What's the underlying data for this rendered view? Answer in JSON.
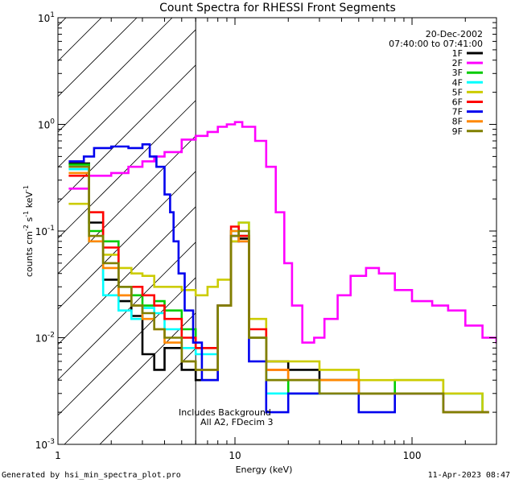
{
  "chart_data": {
    "type": "line",
    "title": "Count Spectra for RHESSI Front Segments",
    "xlabel": "Energy (keV)",
    "ylabel_main": "counts cm",
    "ylabel_exp1": "-2",
    "ylabel_mid": " s",
    "ylabel_exp2": "-1",
    "ylabel_end": " keV",
    "ylabel_exp3": "-1",
    "xscale": "log",
    "yscale": "log",
    "xlim": [
      1,
      300
    ],
    "ylim": [
      0.001,
      10
    ],
    "x_ticks": [
      {
        "value": 1,
        "label": "1"
      },
      {
        "value": 10,
        "label": "10"
      },
      {
        "value": 100,
        "label": "100"
      }
    ],
    "y_ticks": [
      {
        "value": 0.001,
        "base": "10",
        "exp": "-3"
      },
      {
        "value": 0.01,
        "base": "10",
        "exp": "-2"
      },
      {
        "value": 0.1,
        "base": "10",
        "exp": "-1"
      },
      {
        "value": 1,
        "base": "10",
        "exp": "0"
      },
      {
        "value": 10,
        "base": "10",
        "exp": "1"
      }
    ],
    "date": "20-Dec-2002",
    "time_range": "07:40:00 to 07:41:00",
    "shaded_region_kev": [
      1,
      6
    ],
    "annotation_line1": "Includes Background",
    "annotation_line2": "All A2, FDecim 3",
    "series": [
      {
        "name": "1F",
        "color": "#000000",
        "points": [
          [
            1.15,
            0.43
          ],
          [
            1.5,
            0.12
          ],
          [
            1.8,
            0.035
          ],
          [
            2.2,
            0.022
          ],
          [
            2.6,
            0.016
          ],
          [
            3.0,
            0.007
          ],
          [
            3.5,
            0.005
          ],
          [
            4.0,
            0.008
          ],
          [
            5.0,
            0.005
          ],
          [
            6.0,
            0.004
          ],
          [
            8.0,
            0.02
          ],
          [
            9.5,
            0.08
          ],
          [
            10.5,
            0.085
          ],
          [
            12,
            0.01
          ],
          [
            15,
            0.006
          ],
          [
            20,
            0.005
          ],
          [
            30,
            0.004
          ],
          [
            50,
            0.003
          ],
          [
            80,
            0.003
          ],
          [
            150,
            0.002
          ],
          [
            250,
            0.002
          ]
        ]
      },
      {
        "name": "2F",
        "color": "#ff00ff",
        "points": [
          [
            1.15,
            0.25
          ],
          [
            1.5,
            0.33
          ],
          [
            2.0,
            0.35
          ],
          [
            2.5,
            0.4
          ],
          [
            3.0,
            0.45
          ],
          [
            3.5,
            0.5
          ],
          [
            4.0,
            0.55
          ],
          [
            5.0,
            0.72
          ],
          [
            6.0,
            0.78
          ],
          [
            7.0,
            0.85
          ],
          [
            8.0,
            0.95
          ],
          [
            9.0,
            1.0
          ],
          [
            10,
            1.05
          ],
          [
            11,
            0.95
          ],
          [
            13,
            0.7
          ],
          [
            15,
            0.4
          ],
          [
            17,
            0.15
          ],
          [
            19,
            0.05
          ],
          [
            21,
            0.02
          ],
          [
            24,
            0.009
          ],
          [
            28,
            0.01
          ],
          [
            32,
            0.015
          ],
          [
            38,
            0.025
          ],
          [
            45,
            0.038
          ],
          [
            55,
            0.045
          ],
          [
            65,
            0.04
          ],
          [
            80,
            0.028
          ],
          [
            100,
            0.022
          ],
          [
            130,
            0.02
          ],
          [
            160,
            0.018
          ],
          [
            200,
            0.013
          ],
          [
            250,
            0.01
          ],
          [
            300,
            0.009
          ]
        ]
      },
      {
        "name": "3F",
        "color": "#00cc00",
        "points": [
          [
            1.15,
            0.42
          ],
          [
            1.5,
            0.1
          ],
          [
            1.8,
            0.08
          ],
          [
            2.2,
            0.03
          ],
          [
            2.6,
            0.025
          ],
          [
            3.0,
            0.02
          ],
          [
            3.5,
            0.022
          ],
          [
            4.0,
            0.018
          ],
          [
            5.0,
            0.012
          ],
          [
            6.0,
            0.008
          ],
          [
            8.0,
            0.02
          ],
          [
            9.5,
            0.1
          ],
          [
            10.5,
            0.09
          ],
          [
            12,
            0.01
          ],
          [
            15,
            0.004
          ],
          [
            20,
            0.003
          ],
          [
            30,
            0.004
          ],
          [
            50,
            0.003
          ],
          [
            80,
            0.004
          ],
          [
            150,
            0.003
          ],
          [
            250,
            0.002
          ]
        ]
      },
      {
        "name": "4F",
        "color": "#00ffff",
        "points": [
          [
            1.15,
            0.38
          ],
          [
            1.5,
            0.08
          ],
          [
            1.8,
            0.025
          ],
          [
            2.2,
            0.018
          ],
          [
            2.6,
            0.015
          ],
          [
            3.0,
            0.019
          ],
          [
            3.5,
            0.017
          ],
          [
            4.0,
            0.012
          ],
          [
            5.0,
            0.008
          ],
          [
            6.0,
            0.007
          ],
          [
            8.0,
            0.02
          ],
          [
            9.5,
            0.1
          ],
          [
            10.5,
            0.12
          ],
          [
            12,
            0.01
          ],
          [
            15,
            0.003
          ],
          [
            20,
            0.003
          ],
          [
            30,
            0.003
          ],
          [
            50,
            0.003
          ],
          [
            80,
            0.003
          ],
          [
            150,
            0.003
          ],
          [
            250,
            0.002
          ]
        ]
      },
      {
        "name": "5F",
        "color": "#cccc00",
        "points": [
          [
            1.15,
            0.18
          ],
          [
            1.5,
            0.15
          ],
          [
            1.8,
            0.06
          ],
          [
            2.2,
            0.045
          ],
          [
            2.6,
            0.04
          ],
          [
            3.0,
            0.038
          ],
          [
            3.5,
            0.03
          ],
          [
            4.0,
            0.03
          ],
          [
            5.0,
            0.028
          ],
          [
            6.0,
            0.025
          ],
          [
            7.0,
            0.03
          ],
          [
            8.0,
            0.035
          ],
          [
            9.5,
            0.08
          ],
          [
            10.5,
            0.12
          ],
          [
            12,
            0.015
          ],
          [
            15,
            0.006
          ],
          [
            20,
            0.006
          ],
          [
            30,
            0.005
          ],
          [
            50,
            0.004
          ],
          [
            80,
            0.004
          ],
          [
            150,
            0.003
          ],
          [
            250,
            0.002
          ]
        ]
      },
      {
        "name": "6F",
        "color": "#ff0000",
        "points": [
          [
            1.15,
            0.33
          ],
          [
            1.5,
            0.15
          ],
          [
            1.8,
            0.07
          ],
          [
            2.2,
            0.025
          ],
          [
            2.6,
            0.03
          ],
          [
            3.0,
            0.025
          ],
          [
            3.5,
            0.02
          ],
          [
            4.0,
            0.015
          ],
          [
            5.0,
            0.01
          ],
          [
            6.0,
            0.008
          ],
          [
            8.0,
            0.02
          ],
          [
            9.5,
            0.11
          ],
          [
            10.5,
            0.09
          ],
          [
            12,
            0.012
          ],
          [
            15,
            0.005
          ],
          [
            20,
            0.004
          ],
          [
            30,
            0.004
          ],
          [
            50,
            0.003
          ],
          [
            80,
            0.003
          ],
          [
            150,
            0.002
          ],
          [
            250,
            0.002
          ]
        ]
      },
      {
        "name": "7F",
        "color": "#0000ee",
        "points": [
          [
            1.15,
            0.45
          ],
          [
            1.4,
            0.5
          ],
          [
            1.6,
            0.6
          ],
          [
            2.0,
            0.62
          ],
          [
            2.5,
            0.6
          ],
          [
            3.0,
            0.65
          ],
          [
            3.3,
            0.5
          ],
          [
            3.6,
            0.4
          ],
          [
            4.0,
            0.22
          ],
          [
            4.3,
            0.15
          ],
          [
            4.5,
            0.08
          ],
          [
            4.8,
            0.04
          ],
          [
            5.2,
            0.018
          ],
          [
            5.8,
            0.009
          ],
          [
            6.5,
            0.004
          ],
          [
            8.0,
            0.02
          ],
          [
            9.5,
            0.09
          ],
          [
            10.5,
            0.08
          ],
          [
            12,
            0.006
          ],
          [
            15,
            0.002
          ],
          [
            20,
            0.003
          ],
          [
            30,
            0.003
          ],
          [
            50,
            0.002
          ],
          [
            80,
            0.003
          ],
          [
            150,
            0.002
          ],
          [
            250,
            0.002
          ]
        ]
      },
      {
        "name": "8F",
        "color": "#ff8800",
        "points": [
          [
            1.15,
            0.35
          ],
          [
            1.5,
            0.08
          ],
          [
            1.8,
            0.045
          ],
          [
            2.2,
            0.025
          ],
          [
            2.6,
            0.02
          ],
          [
            3.0,
            0.015
          ],
          [
            3.5,
            0.012
          ],
          [
            4.0,
            0.009
          ],
          [
            5.0,
            0.006
          ],
          [
            6.0,
            0.005
          ],
          [
            8.0,
            0.02
          ],
          [
            9.5,
            0.1
          ],
          [
            10.5,
            0.08
          ],
          [
            12,
            0.01
          ],
          [
            15,
            0.005
          ],
          [
            20,
            0.004
          ],
          [
            30,
            0.004
          ],
          [
            50,
            0.003
          ],
          [
            80,
            0.003
          ],
          [
            150,
            0.002
          ],
          [
            250,
            0.002
          ]
        ]
      },
      {
        "name": "9F",
        "color": "#808000",
        "points": [
          [
            1.15,
            0.4
          ],
          [
            1.5,
            0.09
          ],
          [
            1.8,
            0.05
          ],
          [
            2.2,
            0.03
          ],
          [
            2.6,
            0.02
          ],
          [
            3.0,
            0.017
          ],
          [
            3.5,
            0.012
          ],
          [
            4.0,
            0.01
          ],
          [
            5.0,
            0.006
          ],
          [
            6.0,
            0.005
          ],
          [
            8.0,
            0.02
          ],
          [
            9.5,
            0.09
          ],
          [
            10.5,
            0.1
          ],
          [
            12,
            0.01
          ],
          [
            15,
            0.004
          ],
          [
            20,
            0.004
          ],
          [
            30,
            0.003
          ],
          [
            50,
            0.003
          ],
          [
            80,
            0.003
          ],
          [
            150,
            0.002
          ],
          [
            250,
            0.002
          ]
        ]
      }
    ]
  },
  "footer": {
    "left": "Generated by hsi_min_spectra_plot.pro",
    "right": "11-Apr-2023 08:47"
  }
}
